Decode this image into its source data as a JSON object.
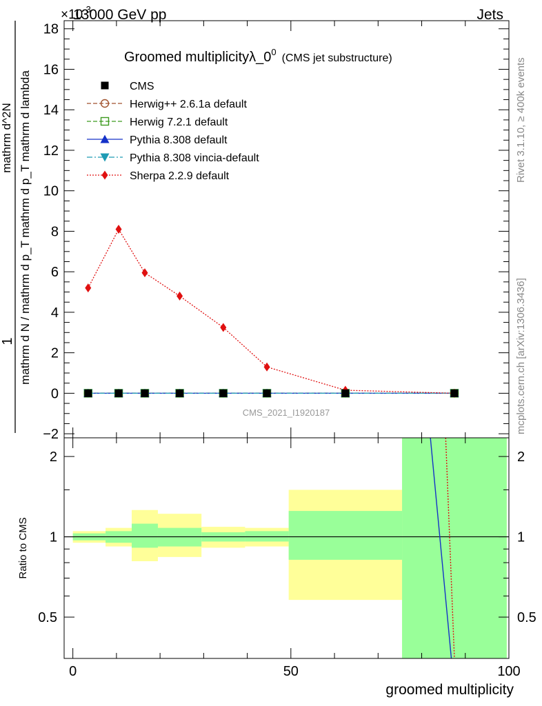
{
  "header": {
    "energy_label": "13000 GeV pp",
    "category_label": "Jets",
    "exponent_label": "×10",
    "exponent_power": "-3"
  },
  "side_labels": {
    "rivet": "Rivet 3.1.10, ≥ 400k events",
    "mcplots": "mcplots.cern.ch [arXiv:1306.3436]"
  },
  "chart_data": {
    "type": "line",
    "title_main": "Groomed multiplicityλ_0",
    "title_sup": "0",
    "title_sub": "(CMS jet substructure)",
    "watermark": "CMS_2021_I1920187",
    "xlabel": "groomed multiplicity",
    "ylabel_num": "1",
    "ylabel_den": "mathrm d N / mathrm d p_T mathrm d p_T mathrm d lambda",
    "ylabel_right": "mathrm d^2N",
    "ratio_ylabel": "Ratio to CMS",
    "xlim": [
      -2,
      100
    ],
    "ylim": [
      -2.2,
      18.4
    ],
    "ratio_ylim": [
      0.35,
      2.35
    ],
    "x_ticks": [
      0,
      50,
      100
    ],
    "y_ticks": [
      -2,
      0,
      2,
      4,
      6,
      8,
      10,
      12,
      14,
      16,
      18
    ],
    "ratio_ticks": [
      0.5,
      1,
      2
    ],
    "x": [
      3.5,
      10.5,
      16.5,
      24.5,
      34.5,
      44.5,
      62.5,
      87.5
    ],
    "bin_edges": [
      0,
      7.5,
      13.5,
      19.5,
      29.5,
      39.5,
      49.5,
      75.5,
      99.5
    ],
    "series": [
      {
        "name": "CMS",
        "color": "#000000",
        "marker": "square-filled",
        "dash": "none",
        "values": [
          0,
          0,
          0,
          0,
          0,
          0,
          0,
          0
        ]
      },
      {
        "name": "Herwig++ 2.6.1a default",
        "color": "#a0522d",
        "marker": "circle-open",
        "dash": "6,3",
        "values": [
          0,
          0,
          0,
          0,
          0,
          0,
          0,
          0
        ]
      },
      {
        "name": "Herwig 7.2.1 default",
        "color": "#3c9a1e",
        "marker": "square-open",
        "dash": "6,3",
        "values": [
          0,
          0,
          0,
          0,
          0,
          0,
          0,
          0
        ]
      },
      {
        "name": "Pythia 8.308 default",
        "color": "#1431c8",
        "marker": "triangle-up",
        "dash": "none",
        "values": [
          0,
          0,
          0,
          0,
          0,
          0,
          0,
          0
        ]
      },
      {
        "name": "Pythia 8.308 vincia-default",
        "color": "#1e9bb4",
        "marker": "triangle-down",
        "dash": "8,3,2,3",
        "values": [
          0,
          0,
          0,
          0,
          0,
          0,
          0,
          0
        ]
      },
      {
        "name": "Sherpa 2.2.9 default",
        "color": "#e01010",
        "marker": "diamond",
        "dash": "2,2",
        "values": [
          5.2,
          8.1,
          5.95,
          4.8,
          3.25,
          1.3,
          0.15,
          0.0
        ]
      }
    ],
    "ratio_bands": {
      "green": [
        [
          0.97,
          1.03
        ],
        [
          0.95,
          1.05
        ],
        [
          0.91,
          1.12
        ],
        [
          0.92,
          1.08
        ],
        [
          0.96,
          1.04
        ],
        [
          0.96,
          1.05
        ],
        [
          0.82,
          1.25
        ],
        [
          0.35,
          2.35
        ]
      ],
      "yellow": [
        [
          0.95,
          1.05
        ],
        [
          0.92,
          1.08
        ],
        [
          0.81,
          1.26
        ],
        [
          0.84,
          1.22
        ],
        [
          0.91,
          1.09
        ],
        [
          0.92,
          1.08
        ],
        [
          0.58,
          1.5
        ],
        [
          0.35,
          2.35
        ]
      ]
    },
    "ratio_lines": [
      {
        "name": "Pythia",
        "color": "#1431c8",
        "dash": "none",
        "points": [
          [
            82.0,
            2.35
          ],
          [
            86.8,
            0.35
          ]
        ]
      },
      {
        "name": "Sherpa",
        "color": "#e01010",
        "dash": "2,2",
        "points": [
          [
            85.5,
            2.35
          ],
          [
            87.5,
            0.35
          ]
        ]
      }
    ]
  }
}
